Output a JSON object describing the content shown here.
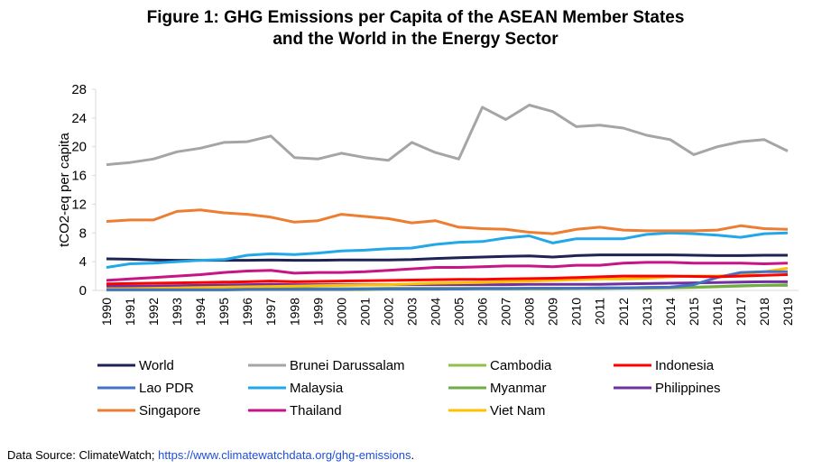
{
  "chart_data": {
    "type": "line",
    "title_line1": "Figure 1: GHG Emissions per Capita of the ASEAN Member States",
    "title_line2": "and the World in the Energy Sector",
    "ylabel": "tCO2-eq per capita",
    "xlabel": "",
    "ylim": [
      0,
      28
    ],
    "yticks": [
      0,
      4,
      8,
      12,
      16,
      20,
      24,
      28
    ],
    "grid": false,
    "legend_position": "bottom",
    "x": [
      "1990",
      "1991",
      "1992",
      "1993",
      "1994",
      "1995",
      "1996",
      "1997",
      "1998",
      "1999",
      "2000",
      "2001",
      "2002",
      "2003",
      "2004",
      "2005",
      "2006",
      "2007",
      "2008",
      "2009",
      "2010",
      "2011",
      "2012",
      "2013",
      "2014",
      "2015",
      "2016",
      "2017",
      "2018",
      "2019"
    ],
    "series": [
      {
        "name": "World",
        "color": "#1f2354",
        "values": [
          4.4,
          4.35,
          4.25,
          4.2,
          4.2,
          4.2,
          4.2,
          4.25,
          4.2,
          4.2,
          4.25,
          4.25,
          4.25,
          4.3,
          4.45,
          4.55,
          4.65,
          4.75,
          4.8,
          4.65,
          4.85,
          4.95,
          4.95,
          4.95,
          4.95,
          4.9,
          4.85,
          4.85,
          4.9,
          4.9
        ]
      },
      {
        "name": "Brunei Darussalam",
        "color": "#a5a5a5",
        "values": [
          17.5,
          17.8,
          18.3,
          19.3,
          19.8,
          20.6,
          20.7,
          21.5,
          18.5,
          18.3,
          19.1,
          18.5,
          18.1,
          20.6,
          19.2,
          18.3,
          25.5,
          23.8,
          25.8,
          24.9,
          22.8,
          23.0,
          22.6,
          21.6,
          21.0,
          18.9,
          20.0,
          20.7,
          21.0,
          19.4
        ]
      },
      {
        "name": "Cambodia",
        "color": "#8fc04a",
        "values": [
          0.05,
          0.05,
          0.05,
          0.05,
          0.05,
          0.05,
          0.1,
          0.1,
          0.1,
          0.1,
          0.1,
          0.1,
          0.15,
          0.15,
          0.15,
          0.2,
          0.2,
          0.2,
          0.2,
          0.2,
          0.25,
          0.25,
          0.3,
          0.3,
          0.35,
          0.4,
          0.5,
          0.6,
          0.7,
          0.8
        ]
      },
      {
        "name": "Indonesia",
        "color": "#ff0000",
        "values": [
          0.9,
          0.95,
          1.0,
          1.05,
          1.1,
          1.15,
          1.2,
          1.3,
          1.2,
          1.25,
          1.3,
          1.35,
          1.4,
          1.45,
          1.5,
          1.55,
          1.55,
          1.6,
          1.65,
          1.7,
          1.8,
          1.9,
          2.0,
          2.0,
          2.0,
          1.95,
          1.9,
          2.0,
          2.1,
          2.2
        ]
      },
      {
        "name": "Lao PDR",
        "color": "#4472c4",
        "values": [
          0.1,
          0.1,
          0.1,
          0.1,
          0.1,
          0.1,
          0.15,
          0.15,
          0.15,
          0.15,
          0.15,
          0.2,
          0.2,
          0.2,
          0.2,
          0.2,
          0.25,
          0.25,
          0.3,
          0.3,
          0.3,
          0.35,
          0.35,
          0.4,
          0.45,
          0.8,
          1.8,
          2.5,
          2.6,
          2.6
        ]
      },
      {
        "name": "Malaysia",
        "color": "#22a7e8",
        "values": [
          3.2,
          3.7,
          3.8,
          4.0,
          4.2,
          4.3,
          4.9,
          5.1,
          5.0,
          5.2,
          5.5,
          5.6,
          5.8,
          5.9,
          6.4,
          6.7,
          6.8,
          7.3,
          7.6,
          6.6,
          7.2,
          7.2,
          7.2,
          7.8,
          8.0,
          7.9,
          7.7,
          7.4,
          7.9,
          8.0
        ]
      },
      {
        "name": "Myanmar",
        "color": "#70ad47",
        "values": [
          0.2,
          0.2,
          0.2,
          0.2,
          0.2,
          0.2,
          0.25,
          0.25,
          0.25,
          0.25,
          0.25,
          0.25,
          0.3,
          0.3,
          0.3,
          0.3,
          0.3,
          0.3,
          0.3,
          0.3,
          0.3,
          0.35,
          0.35,
          0.4,
          0.4,
          0.45,
          0.55,
          0.65,
          0.7,
          0.7
        ]
      },
      {
        "name": "Philippines",
        "color": "#7030a0",
        "values": [
          0.6,
          0.6,
          0.6,
          0.65,
          0.7,
          0.75,
          0.8,
          0.85,
          0.8,
          0.8,
          0.8,
          0.8,
          0.8,
          0.8,
          0.8,
          0.8,
          0.8,
          0.8,
          0.85,
          0.85,
          0.85,
          0.85,
          0.9,
          0.95,
          1.0,
          1.05,
          1.1,
          1.15,
          1.2,
          1.2
        ]
      },
      {
        "name": "Singapore",
        "color": "#ed7d31",
        "values": [
          9.6,
          9.8,
          9.8,
          11.0,
          11.2,
          10.8,
          10.6,
          10.2,
          9.5,
          9.7,
          10.6,
          10.3,
          10.0,
          9.4,
          9.7,
          8.8,
          8.6,
          8.5,
          8.1,
          7.9,
          8.5,
          8.8,
          8.4,
          8.3,
          8.3,
          8.3,
          8.4,
          9.0,
          8.6,
          8.5
        ]
      },
      {
        "name": "Thailand",
        "color": "#c71585",
        "values": [
          1.4,
          1.6,
          1.8,
          2.0,
          2.2,
          2.5,
          2.7,
          2.8,
          2.4,
          2.5,
          2.5,
          2.6,
          2.8,
          3.0,
          3.2,
          3.2,
          3.3,
          3.4,
          3.4,
          3.3,
          3.5,
          3.5,
          3.8,
          3.9,
          3.9,
          3.8,
          3.8,
          3.8,
          3.7,
          3.8
        ]
      },
      {
        "name": "Viet Nam",
        "color": "#ffc000",
        "values": [
          0.2,
          0.25,
          0.3,
          0.35,
          0.4,
          0.45,
          0.5,
          0.55,
          0.6,
          0.65,
          0.7,
          0.75,
          0.8,
          0.9,
          1.0,
          1.05,
          1.1,
          1.2,
          1.3,
          1.4,
          1.5,
          1.6,
          1.6,
          1.7,
          1.9,
          2.0,
          2.0,
          2.2,
          2.6,
          3.1
        ]
      }
    ]
  },
  "footer": {
    "prefix": "Data Source: ClimateWatch; ",
    "link": "https://www.climatewatchdata.org/ghg-emissions",
    "suffix": "."
  }
}
